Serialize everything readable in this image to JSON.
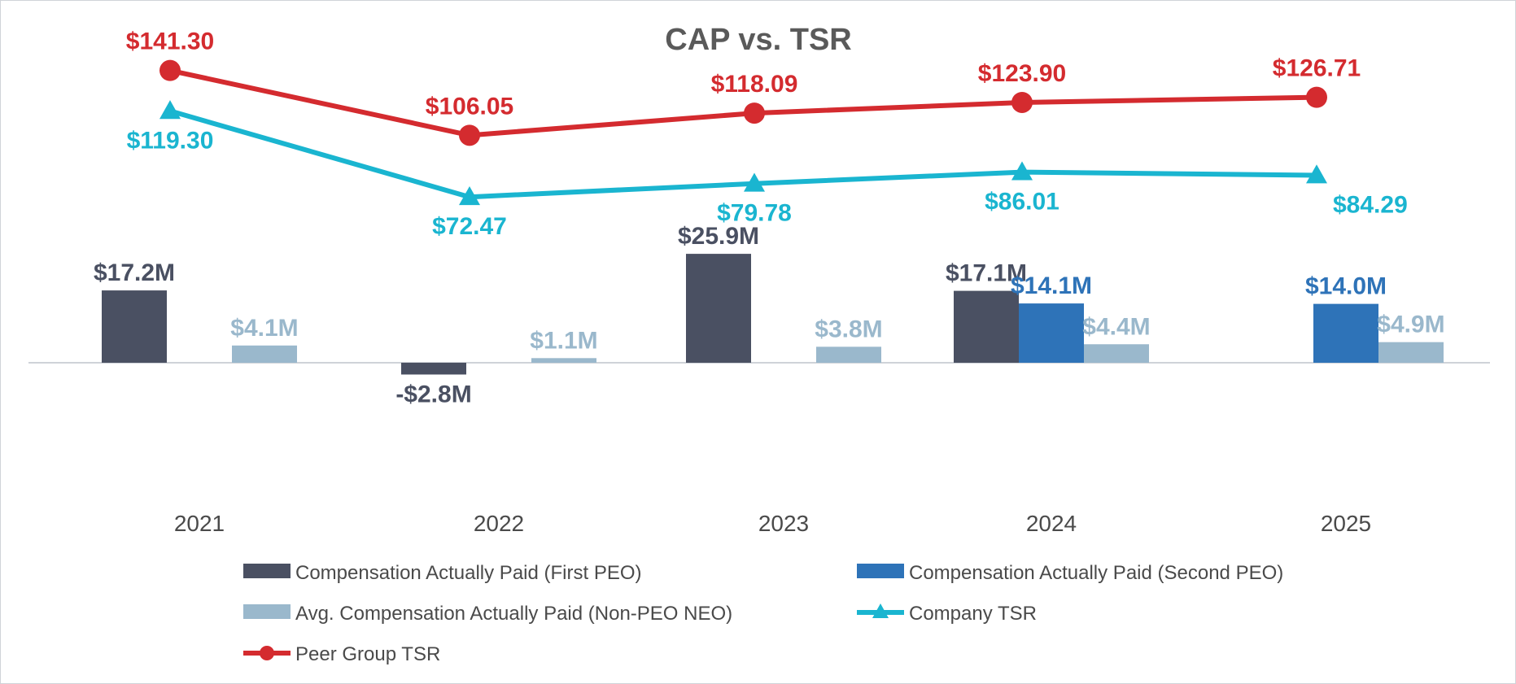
{
  "chart_data": {
    "type": "bar",
    "title": "CAP vs. TSR",
    "categories": [
      "2021",
      "2022",
      "2023",
      "2024",
      "2025"
    ],
    "bar_series": [
      {
        "name": "Compensation Actually Paid (First PEO)",
        "color": "#4a5062",
        "label_color": "#4a5062",
        "values": [
          17.2,
          -2.8,
          25.9,
          17.1,
          null
        ],
        "labels": [
          "$17.2M",
          "-$2.8M",
          "$25.9M",
          "$17.1M",
          null
        ]
      },
      {
        "name": "Compensation Actually Paid (Second PEO)",
        "color": "#2e73b8",
        "label_color": "#2e73b8",
        "values": [
          null,
          null,
          null,
          14.1,
          14.0
        ],
        "labels": [
          null,
          null,
          null,
          "$14.1M",
          "$14.0M"
        ]
      },
      {
        "name": "Avg. Compensation Actually Paid (Non-PEO NEO)",
        "color": "#9ab8cc",
        "label_color": "#9ab8cc",
        "values": [
          4.1,
          1.1,
          3.8,
          4.4,
          4.9
        ],
        "labels": [
          "$4.1M",
          "$1.1M",
          "$3.8M",
          "$4.4M",
          "$4.9M"
        ]
      }
    ],
    "line_series": [
      {
        "name": "Company TSR",
        "color": "#1ab5d0",
        "marker": "triangle",
        "values": [
          119.3,
          72.47,
          79.78,
          86.01,
          84.29
        ],
        "labels": [
          "$119.30",
          "$72.47",
          "$79.78",
          "$86.01",
          "$84.29"
        ]
      },
      {
        "name": "Peer Group TSR",
        "color": "#d42b2f",
        "marker": "circle",
        "values": [
          141.3,
          106.05,
          118.09,
          123.9,
          126.71
        ],
        "labels": [
          "$141.30",
          "$106.05",
          "$118.09",
          "$123.90",
          "$126.71"
        ]
      }
    ],
    "legend": [
      "Compensation Actually Paid (First PEO)",
      "Compensation Actually Paid (Second PEO)",
      "Avg. Compensation Actually Paid (Non-PEO NEO)",
      "Company TSR",
      "Peer Group TSR"
    ],
    "legend_position": "bottom",
    "grid": false
  }
}
